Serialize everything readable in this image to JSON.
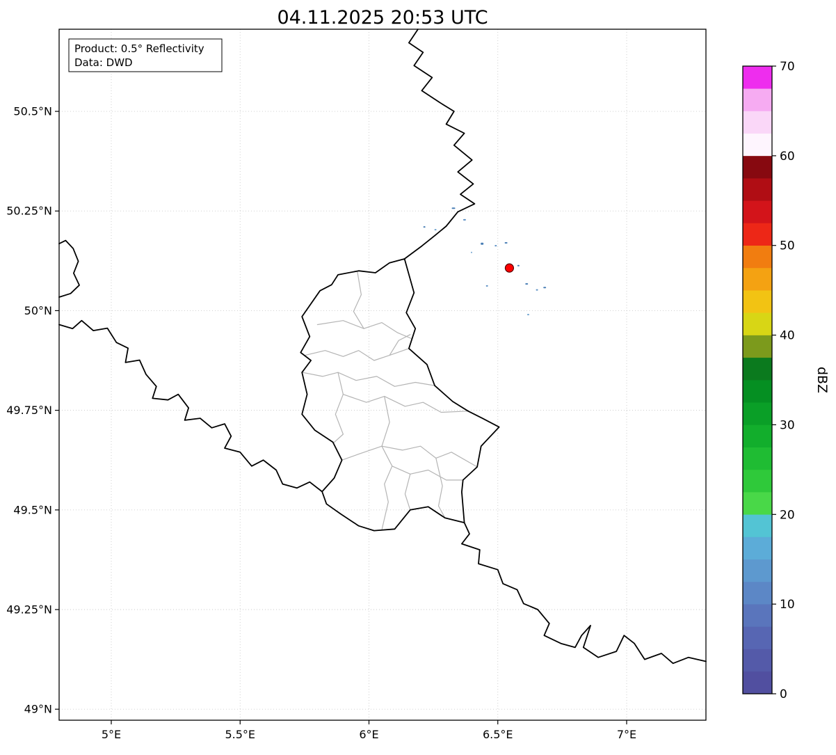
{
  "title": "04.11.2025 20:53 UTC",
  "legend": {
    "product": "Product: 0.5° Reflectivity",
    "data_source": "Data: DWD"
  },
  "axes": {
    "x_ticks": [
      {
        "value": 5.0,
        "label": "5°E"
      },
      {
        "value": 5.5,
        "label": "5.5°E"
      },
      {
        "value": 6.0,
        "label": "6°E"
      },
      {
        "value": 6.5,
        "label": "6.5°E"
      },
      {
        "value": 7.0,
        "label": "7°E"
      }
    ],
    "y_ticks": [
      {
        "value": 50.5,
        "label": "50.5°N"
      },
      {
        "value": 50.25,
        "label": "50.25°N"
      },
      {
        "value": 50.0,
        "label": "50°N"
      },
      {
        "value": 49.75,
        "label": "49.75°N"
      },
      {
        "value": 49.5,
        "label": "49.5°N"
      },
      {
        "value": 49.25,
        "label": "49.25°N"
      },
      {
        "value": 49.0,
        "label": "49°N"
      }
    ],
    "lon_range": [
      4.7976,
      7.3077
    ],
    "lat_range": [
      48.9724,
      50.7061
    ],
    "grid": true
  },
  "colorbar": {
    "label": "dBZ",
    "min": 0,
    "max": 70,
    "tick_values": [
      0,
      10,
      20,
      30,
      40,
      50,
      60,
      70
    ],
    "segment_colors": [
      "#514fa0",
      "#545aa9",
      "#5766b3",
      "#5a75bc",
      "#5c87c6",
      "#5d99cf",
      "#5cacd8",
      "#53c4d4",
      "#49d848",
      "#2fc93a",
      "#1fbc33",
      "#12ae2c",
      "#0a9f27",
      "#058f22",
      "#0b7a1e",
      "#7c9a1c",
      "#d8d615",
      "#f2c313",
      "#f4a212",
      "#f17d10",
      "#ed2717",
      "#d3141a",
      "#b00d14",
      "#870910",
      "#fef5fe",
      "#fad7f8",
      "#f6abf2",
      "#ee2dee"
    ]
  },
  "map": {
    "radar_site": {
      "lon": 6.545,
      "lat": 50.107,
      "color": "#ff0000"
    },
    "border_color": "#000000",
    "district_color": "#b4b4b4",
    "borders": [
      {
        "name": "belgium-germany",
        "points": [
          [
            6.19,
            50.706
          ],
          [
            6.155,
            50.672
          ],
          [
            6.21,
            50.648
          ],
          [
            6.175,
            50.615
          ],
          [
            6.245,
            50.585
          ],
          [
            6.205,
            50.552
          ],
          [
            6.275,
            50.522
          ],
          [
            6.33,
            50.5
          ],
          [
            6.3,
            50.468
          ],
          [
            6.37,
            50.445
          ],
          [
            6.33,
            50.415
          ],
          [
            6.4,
            50.378
          ],
          [
            6.345,
            50.348
          ],
          [
            6.405,
            50.318
          ],
          [
            6.355,
            50.292
          ],
          [
            6.41,
            50.268
          ],
          [
            6.345,
            50.248
          ],
          [
            6.3,
            50.212
          ],
          [
            6.255,
            50.188
          ],
          [
            6.205,
            50.162
          ],
          [
            6.138,
            50.13
          ]
        ]
      },
      {
        "name": "luxembourg",
        "points": [
          [
            6.138,
            50.13
          ],
          [
            6.175,
            50.045
          ],
          [
            6.145,
            49.995
          ],
          [
            6.18,
            49.955
          ],
          [
            6.155,
            49.905
          ],
          [
            6.225,
            49.865
          ],
          [
            6.255,
            49.812
          ],
          [
            6.325,
            49.772
          ],
          [
            6.385,
            49.748
          ],
          [
            6.44,
            49.73
          ],
          [
            6.505,
            49.708
          ],
          [
            6.435,
            49.66
          ],
          [
            6.42,
            49.608
          ],
          [
            6.365,
            49.575
          ],
          [
            6.36,
            49.545
          ],
          [
            6.37,
            49.468
          ],
          [
            6.295,
            49.48
          ],
          [
            6.23,
            49.508
          ],
          [
            6.16,
            49.5
          ],
          [
            6.1,
            49.452
          ],
          [
            6.02,
            49.448
          ],
          [
            5.96,
            49.46
          ],
          [
            5.89,
            49.49
          ],
          [
            5.835,
            49.515
          ],
          [
            5.818,
            49.546
          ],
          [
            5.865,
            49.58
          ],
          [
            5.895,
            49.625
          ],
          [
            5.86,
            49.67
          ],
          [
            5.79,
            49.7
          ],
          [
            5.74,
            49.74
          ],
          [
            5.76,
            49.79
          ],
          [
            5.74,
            49.845
          ],
          [
            5.775,
            49.875
          ],
          [
            5.735,
            49.895
          ],
          [
            5.77,
            49.935
          ],
          [
            5.74,
            49.985
          ],
          [
            5.81,
            50.05
          ],
          [
            5.855,
            50.065
          ],
          [
            5.88,
            50.09
          ],
          [
            5.96,
            50.1
          ],
          [
            6.025,
            50.095
          ],
          [
            6.08,
            50.12
          ],
          [
            6.138,
            50.13
          ]
        ]
      },
      {
        "name": "france-belgium-givet",
        "points": [
          [
            4.7976,
            50.168
          ],
          [
            4.823,
            50.176
          ],
          [
            4.852,
            50.156
          ],
          [
            4.872,
            50.124
          ],
          [
            4.854,
            50.094
          ],
          [
            4.876,
            50.064
          ],
          [
            4.842,
            50.043
          ],
          [
            4.7976,
            50.034
          ]
        ]
      },
      {
        "name": "france-belgium",
        "points": [
          [
            4.7976,
            49.965
          ],
          [
            4.85,
            49.955
          ],
          [
            4.885,
            49.975
          ],
          [
            4.93,
            49.95
          ],
          [
            4.985,
            49.956
          ],
          [
            5.02,
            49.92
          ],
          [
            5.065,
            49.906
          ],
          [
            5.055,
            49.87
          ],
          [
            5.11,
            49.876
          ],
          [
            5.135,
            49.84
          ],
          [
            5.175,
            49.81
          ],
          [
            5.16,
            49.78
          ],
          [
            5.22,
            49.776
          ],
          [
            5.26,
            49.79
          ],
          [
            5.3,
            49.756
          ],
          [
            5.285,
            49.725
          ],
          [
            5.345,
            49.73
          ],
          [
            5.39,
            49.706
          ],
          [
            5.44,
            49.716
          ],
          [
            5.465,
            49.685
          ],
          [
            5.44,
            49.655
          ],
          [
            5.5,
            49.645
          ],
          [
            5.545,
            49.61
          ],
          [
            5.59,
            49.625
          ],
          [
            5.64,
            49.6
          ],
          [
            5.665,
            49.565
          ],
          [
            5.72,
            49.555
          ],
          [
            5.77,
            49.57
          ],
          [
            5.818,
            49.546
          ]
        ]
      },
      {
        "name": "france-germany",
        "points": [
          [
            6.37,
            49.468
          ],
          [
            6.39,
            49.44
          ],
          [
            6.36,
            49.415
          ],
          [
            6.43,
            49.4
          ],
          [
            6.425,
            49.365
          ],
          [
            6.5,
            49.35
          ],
          [
            6.52,
            49.315
          ],
          [
            6.575,
            49.3
          ],
          [
            6.6,
            49.265
          ],
          [
            6.655,
            49.25
          ],
          [
            6.7,
            49.215
          ],
          [
            6.68,
            49.185
          ],
          [
            6.745,
            49.165
          ],
          [
            6.8,
            49.155
          ],
          [
            6.825,
            49.185
          ],
          [
            6.86,
            49.21
          ],
          [
            6.832,
            49.155
          ],
          [
            6.89,
            49.13
          ],
          [
            6.96,
            49.145
          ],
          [
            6.99,
            49.185
          ],
          [
            7.03,
            49.165
          ],
          [
            7.07,
            49.125
          ],
          [
            7.135,
            49.14
          ],
          [
            7.18,
            49.115
          ],
          [
            7.24,
            49.13
          ],
          [
            7.3077,
            49.12
          ]
        ]
      }
    ],
    "districts": [
      [
        [
          5.8,
          49.965
        ],
        [
          5.9,
          49.975
        ],
        [
          5.98,
          49.955
        ],
        [
          6.05,
          49.97
        ],
        [
          6.11,
          49.945
        ],
        [
          6.165,
          49.93
        ]
      ],
      [
        [
          5.955,
          50.098
        ],
        [
          5.97,
          50.04
        ],
        [
          5.94,
          49.998
        ],
        [
          5.98,
          49.955
        ]
      ],
      [
        [
          5.752,
          49.888
        ],
        [
          5.83,
          49.9
        ],
        [
          5.9,
          49.885
        ],
        [
          5.96,
          49.9
        ],
        [
          6.02,
          49.875
        ],
        [
          6.08,
          49.888
        ],
        [
          6.155,
          49.905
        ]
      ],
      [
        [
          6.08,
          49.888
        ],
        [
          6.115,
          49.925
        ],
        [
          6.16,
          49.94
        ]
      ],
      [
        [
          5.742,
          49.845
        ],
        [
          5.82,
          49.835
        ],
        [
          5.88,
          49.845
        ],
        [
          5.95,
          49.825
        ],
        [
          6.03,
          49.835
        ],
        [
          6.1,
          49.81
        ],
        [
          6.18,
          49.82
        ],
        [
          6.255,
          49.812
        ]
      ],
      [
        [
          5.88,
          49.845
        ],
        [
          5.9,
          49.79
        ],
        [
          5.87,
          49.74
        ],
        [
          5.9,
          49.69
        ],
        [
          5.862,
          49.668
        ]
      ],
      [
        [
          5.9,
          49.79
        ],
        [
          5.99,
          49.77
        ],
        [
          6.06,
          49.785
        ],
        [
          6.14,
          49.76
        ],
        [
          6.21,
          49.77
        ],
        [
          6.28,
          49.745
        ],
        [
          6.385,
          49.748
        ]
      ],
      [
        [
          6.06,
          49.785
        ],
        [
          6.08,
          49.72
        ],
        [
          6.05,
          49.66
        ],
        [
          6.09,
          49.61
        ],
        [
          6.06,
          49.565
        ],
        [
          6.075,
          49.52
        ],
        [
          6.05,
          49.45
        ]
      ],
      [
        [
          5.895,
          49.625
        ],
        [
          5.96,
          49.64
        ],
        [
          6.05,
          49.66
        ]
      ],
      [
        [
          6.05,
          49.66
        ],
        [
          6.13,
          49.65
        ],
        [
          6.2,
          49.66
        ],
        [
          6.26,
          49.63
        ],
        [
          6.32,
          49.645
        ],
        [
          6.42,
          49.608
        ]
      ],
      [
        [
          6.09,
          49.61
        ],
        [
          6.16,
          49.59
        ],
        [
          6.23,
          49.6
        ],
        [
          6.3,
          49.575
        ],
        [
          6.365,
          49.575
        ]
      ],
      [
        [
          6.16,
          49.59
        ],
        [
          6.14,
          49.54
        ],
        [
          6.16,
          49.5
        ]
      ],
      [
        [
          6.26,
          49.63
        ],
        [
          6.285,
          49.56
        ],
        [
          6.27,
          49.51
        ],
        [
          6.295,
          49.48
        ]
      ]
    ],
    "precip_specks": [
      {
        "lon": 6.328,
        "lat": 50.257,
        "w": 5,
        "h": 2,
        "c": "#4a7fb5"
      },
      {
        "lon": 6.371,
        "lat": 50.228,
        "w": 4,
        "h": 2,
        "c": "#5b8fc4"
      },
      {
        "lon": 6.215,
        "lat": 50.21,
        "w": 3,
        "h": 2,
        "c": "#4a7fb5"
      },
      {
        "lon": 6.258,
        "lat": 50.203,
        "w": 3,
        "h": 2,
        "c": "#6fa3cf"
      },
      {
        "lon": 6.439,
        "lat": 50.168,
        "w": 4,
        "h": 3,
        "c": "#4a7fb5"
      },
      {
        "lon": 6.492,
        "lat": 50.163,
        "w": 3,
        "h": 2,
        "c": "#5b8fc4"
      },
      {
        "lon": 6.532,
        "lat": 50.17,
        "w": 4,
        "h": 2,
        "c": "#4a7fb5"
      },
      {
        "lon": 6.398,
        "lat": 50.146,
        "w": 2,
        "h": 2,
        "c": "#6fa3cf"
      },
      {
        "lon": 6.58,
        "lat": 50.113,
        "w": 3,
        "h": 2,
        "c": "#4a7fb5"
      },
      {
        "lon": 6.458,
        "lat": 50.062,
        "w": 3,
        "h": 2,
        "c": "#5b8fc4"
      },
      {
        "lon": 6.612,
        "lat": 50.067,
        "w": 4,
        "h": 2,
        "c": "#4a7fb5"
      },
      {
        "lon": 6.652,
        "lat": 50.052,
        "w": 3,
        "h": 2,
        "c": "#5b8fc4"
      },
      {
        "lon": 6.682,
        "lat": 50.058,
        "w": 4,
        "h": 2,
        "c": "#4a7fb5"
      },
      {
        "lon": 6.618,
        "lat": 49.99,
        "w": 3,
        "h": 2,
        "c": "#6fa3cf"
      }
    ]
  }
}
